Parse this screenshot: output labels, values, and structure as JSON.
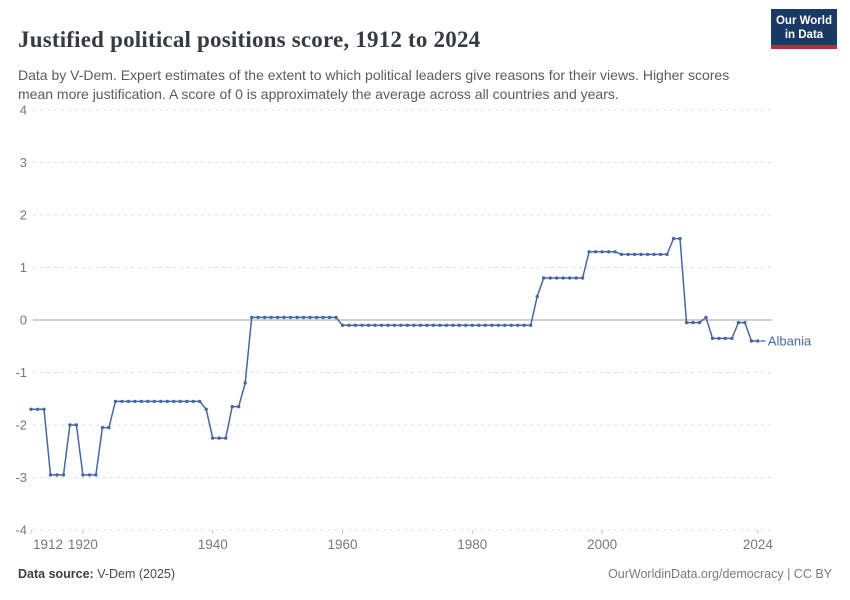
{
  "header": {
    "title": "Justified political positions score, 1912 to 2024",
    "subtitle": "Data by V-Dem. Expert estimates of the extent to which political leaders give reasons for their views. Higher scores mean more justification. A score of 0 is approximately the average across all countries and years.",
    "logo": {
      "line1": "Our World",
      "line2": "in Data",
      "bg_color": "#1b3a63",
      "accent_color": "#bb2c3f"
    }
  },
  "footer": {
    "source_label": "Data source:",
    "source_value": " V-Dem (2025)",
    "license": "OurWorldinData.org/democracy | CC BY"
  },
  "chart_data": {
    "type": "line",
    "title": "Justified political positions score, 1912 to 2024",
    "xlabel": "",
    "ylabel": "",
    "x_domain": [
      1912,
      2024
    ],
    "ylim": [
      -4,
      4
    ],
    "y_ticks": [
      4,
      3,
      2,
      1,
      0,
      -1,
      -2,
      -3,
      -4
    ],
    "x_ticks": [
      1912,
      1920,
      1940,
      1960,
      1980,
      2000,
      2024
    ],
    "grid": "horizontal dashed gridlines, solid line at zero",
    "legend_position": "label at end of line",
    "colors": {
      "line": "#4668a2",
      "gridline": "#dcdcdc",
      "zero_line": "#a1a1a1",
      "tick": "#c4c4c4",
      "axis_label": "#76787a"
    },
    "series": [
      {
        "name": "Albania",
        "color": "#4668a2",
        "points": [
          [
            1912,
            -1.7
          ],
          [
            1913,
            -1.7
          ],
          [
            1914,
            -1.7
          ],
          [
            1915,
            -2.95
          ],
          [
            1916,
            -2.95
          ],
          [
            1917,
            -2.95
          ],
          [
            1918,
            -2.0
          ],
          [
            1919,
            -2.0
          ],
          [
            1920,
            -2.95
          ],
          [
            1921,
            -2.95
          ],
          [
            1922,
            -2.95
          ],
          [
            1923,
            -2.05
          ],
          [
            1924,
            -2.05
          ],
          [
            1925,
            -1.55
          ],
          [
            1926,
            -1.55
          ],
          [
            1927,
            -1.55
          ],
          [
            1928,
            -1.55
          ],
          [
            1929,
            -1.55
          ],
          [
            1930,
            -1.55
          ],
          [
            1931,
            -1.55
          ],
          [
            1932,
            -1.55
          ],
          [
            1933,
            -1.55
          ],
          [
            1934,
            -1.55
          ],
          [
            1935,
            -1.55
          ],
          [
            1936,
            -1.55
          ],
          [
            1937,
            -1.55
          ],
          [
            1938,
            -1.55
          ],
          [
            1939,
            -1.7
          ],
          [
            1940,
            -2.25
          ],
          [
            1941,
            -2.25
          ],
          [
            1942,
            -2.25
          ],
          [
            1943,
            -1.65
          ],
          [
            1944,
            -1.65
          ],
          [
            1945,
            -1.2
          ],
          [
            1946,
            0.05
          ],
          [
            1947,
            0.05
          ],
          [
            1948,
            0.05
          ],
          [
            1949,
            0.05
          ],
          [
            1950,
            0.05
          ],
          [
            1951,
            0.05
          ],
          [
            1952,
            0.05
          ],
          [
            1953,
            0.05
          ],
          [
            1954,
            0.05
          ],
          [
            1955,
            0.05
          ],
          [
            1956,
            0.05
          ],
          [
            1957,
            0.05
          ],
          [
            1958,
            0.05
          ],
          [
            1959,
            0.05
          ],
          [
            1960,
            -0.1
          ],
          [
            1961,
            -0.1
          ],
          [
            1962,
            -0.1
          ],
          [
            1963,
            -0.1
          ],
          [
            1964,
            -0.1
          ],
          [
            1965,
            -0.1
          ],
          [
            1966,
            -0.1
          ],
          [
            1967,
            -0.1
          ],
          [
            1968,
            -0.1
          ],
          [
            1969,
            -0.1
          ],
          [
            1970,
            -0.1
          ],
          [
            1971,
            -0.1
          ],
          [
            1972,
            -0.1
          ],
          [
            1973,
            -0.1
          ],
          [
            1974,
            -0.1
          ],
          [
            1975,
            -0.1
          ],
          [
            1976,
            -0.1
          ],
          [
            1977,
            -0.1
          ],
          [
            1978,
            -0.1
          ],
          [
            1979,
            -0.1
          ],
          [
            1980,
            -0.1
          ],
          [
            1981,
            -0.1
          ],
          [
            1982,
            -0.1
          ],
          [
            1983,
            -0.1
          ],
          [
            1984,
            -0.1
          ],
          [
            1985,
            -0.1
          ],
          [
            1986,
            -0.1
          ],
          [
            1987,
            -0.1
          ],
          [
            1988,
            -0.1
          ],
          [
            1989,
            -0.1
          ],
          [
            1990,
            0.45
          ],
          [
            1991,
            0.8
          ],
          [
            1992,
            0.8
          ],
          [
            1993,
            0.8
          ],
          [
            1994,
            0.8
          ],
          [
            1995,
            0.8
          ],
          [
            1996,
            0.8
          ],
          [
            1997,
            0.8
          ],
          [
            1998,
            1.3
          ],
          [
            1999,
            1.3
          ],
          [
            2000,
            1.3
          ],
          [
            2001,
            1.3
          ],
          [
            2002,
            1.3
          ],
          [
            2003,
            1.25
          ],
          [
            2004,
            1.25
          ],
          [
            2005,
            1.25
          ],
          [
            2006,
            1.25
          ],
          [
            2007,
            1.25
          ],
          [
            2008,
            1.25
          ],
          [
            2009,
            1.25
          ],
          [
            2010,
            1.25
          ],
          [
            2011,
            1.55
          ],
          [
            2012,
            1.55
          ],
          [
            2013,
            -0.05
          ],
          [
            2014,
            -0.05
          ],
          [
            2015,
            -0.05
          ],
          [
            2016,
            0.05
          ],
          [
            2017,
            -0.35
          ],
          [
            2018,
            -0.35
          ],
          [
            2019,
            -0.35
          ],
          [
            2020,
            -0.35
          ],
          [
            2021,
            -0.05
          ],
          [
            2022,
            -0.05
          ],
          [
            2023,
            -0.4
          ],
          [
            2024,
            -0.4
          ]
        ]
      }
    ]
  }
}
